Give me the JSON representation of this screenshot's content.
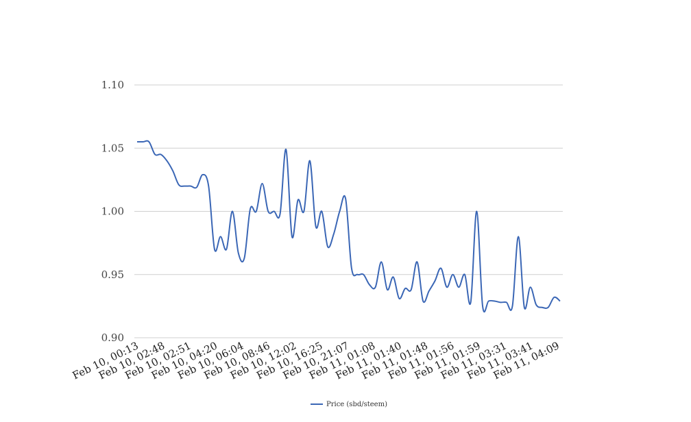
{
  "chart_data": {
    "type": "line",
    "title": "",
    "xlabel": "",
    "ylabel": "",
    "ylim": [
      0.9,
      1.1
    ],
    "yticks": [
      "0.90",
      "0.95",
      "1.00",
      "1.05",
      "1.10"
    ],
    "x_tick_labels": [
      "Feb 10, 00:13",
      "Feb 10, 02:48",
      "Feb 10, 02:51",
      "Feb 10, 04:20",
      "Feb 10, 06:04",
      "Feb 10, 08:46",
      "Feb 10, 12:02",
      "Feb 10, 16:25",
      "Feb 10, 21:07",
      "Feb 11, 01:08",
      "Feb 11, 01:40",
      "Feb 11, 01:48",
      "Feb 11, 01:56",
      "Feb 11, 01:59",
      "Feb 11, 03:31",
      "Feb 11, 03:41",
      "Feb 11, 04:09"
    ],
    "grid": true,
    "legend_position": "bottom",
    "series": [
      {
        "name": "Price (sbd/steem)",
        "color": "#3a66b5",
        "values": [
          1.055,
          1.055,
          1.055,
          1.045,
          1.045,
          1.04,
          1.032,
          1.021,
          1.02,
          1.02,
          1.019,
          1.029,
          1.02,
          0.97,
          0.98,
          0.97,
          1.0,
          0.967,
          0.963,
          1.002,
          1.0,
          1.022,
          1.0,
          1.0,
          0.998,
          1.049,
          0.98,
          1.009,
          1.0,
          1.04,
          0.988,
          1.0,
          0.972,
          0.982,
          1.0,
          1.01,
          0.955,
          0.95,
          0.95,
          0.942,
          0.94,
          0.96,
          0.938,
          0.948,
          0.931,
          0.939,
          0.938,
          0.96,
          0.929,
          0.937,
          0.945,
          0.955,
          0.94,
          0.95,
          0.94,
          0.95,
          0.928,
          1.0,
          0.925,
          0.929,
          0.929,
          0.928,
          0.928,
          0.925,
          0.98,
          0.924,
          0.94,
          0.926,
          0.924,
          0.924,
          0.932,
          0.929
        ]
      }
    ]
  }
}
